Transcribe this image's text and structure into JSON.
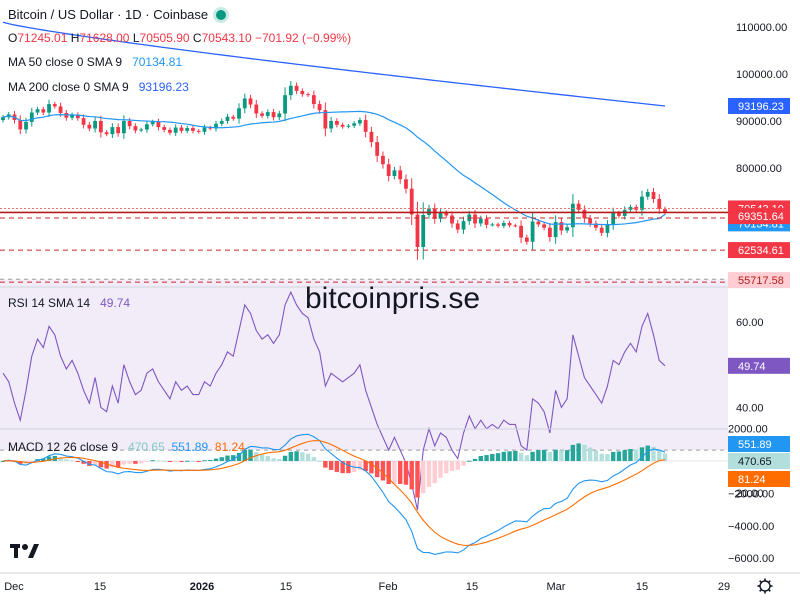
{
  "header": {
    "title": "Bitcoin / US Dollar · 1D · Coinbase",
    "ohlc": {
      "o_label": "O",
      "o": "71245.01",
      "h_label": "H",
      "h": "71628.00",
      "l_label": "L",
      "l": "70505.90",
      "c_label": "C",
      "c": "70543.10",
      "change": "−701.92 (−0.99%)"
    }
  },
  "legends": {
    "ma50_name": "MA 50 close 0 SMA 9",
    "ma50_value": "70134.81",
    "ma200_name": "MA 200 close 0 SMA 9",
    "ma200_value": "93196.23",
    "rsi_name": "RSI 14 SMA 14",
    "rsi_value": "49.74",
    "macd_name": "MACD 12 26 close 9",
    "macd_hist": "470.65",
    "macd_line": "551.89",
    "macd_signal": "81.24"
  },
  "watermark": "bitcoinpris.se",
  "price_labels": {
    "last": "70543.10",
    "ma50": "70134.81",
    "ma200": "93196.23",
    "level1": "69351.64",
    "level2": "62534.61",
    "level3": "55717.58"
  },
  "rsi_label": "49.74",
  "macd_labels": {
    "line": "551.89",
    "hist": "470.65",
    "signal": "81.24"
  },
  "colors": {
    "up": "#089981",
    "down": "#f23645",
    "ma50": "#2196f3",
    "ma200": "#2962ff",
    "rsi": "#7e57c2",
    "rsi_band": "#ede7f6",
    "macd": "#2196f3",
    "signal": "#ff6d00",
    "hist_up_strong": "#26a69a",
    "hist_up_weak": "#b2dfdb",
    "hist_down_strong": "#ff5252",
    "hist_down_weak": "#ffcdd2"
  },
  "icons": {
    "settings": "gear-icon",
    "logo": "tradingview-logo-icon"
  },
  "chart_data": [
    {
      "type": "candlestick",
      "title": "Bitcoin / US Dollar · 1D · Coinbase",
      "x_ticks": [
        "Dec",
        "15",
        "2026",
        "15",
        "Feb",
        "15",
        "Mar",
        "15",
        "29"
      ],
      "y_ticks": [
        "110000.00",
        "100000.00",
        "90000.00",
        "80000.00"
      ],
      "ylim": [
        55000,
        114000
      ],
      "grid": false,
      "closes": [
        90800,
        91400,
        90200,
        88200,
        89800,
        91800,
        92500,
        91800,
        93600,
        93100,
        91700,
        90700,
        91300,
        90600,
        89200,
        88400,
        90000,
        87600,
        87200,
        88700,
        87400,
        90000,
        88900,
        88000,
        88200,
        89300,
        89800,
        88700,
        88100,
        87500,
        88600,
        87900,
        88500,
        87900,
        87700,
        88600,
        88400,
        89400,
        90000,
        90900,
        90500,
        92700,
        94800,
        93500,
        91600,
        91100,
        91900,
        90800,
        91600,
        95500,
        97500,
        96400,
        95700,
        95500,
        93600,
        92300,
        88400,
        90000,
        89200,
        88800,
        89000,
        89500,
        90200,
        87700,
        85500,
        82600,
        80800,
        78300,
        79500,
        77600,
        75600,
        70100,
        63200,
        70000,
        71400,
        69200,
        70500,
        69900,
        68200,
        66900,
        68700,
        70100,
        68200,
        69200,
        67900,
        68000,
        67700,
        68300,
        67800,
        67700,
        65200,
        64300,
        68600,
        68000,
        67300,
        65300,
        68500,
        66700,
        67400,
        72400,
        71100,
        69300,
        68200,
        67300,
        66200,
        68000,
        70400,
        69800,
        71100,
        71700,
        71100,
        73900,
        74900,
        73400,
        71300,
        70543
      ],
      "series": [
        {
          "name": "MA 50 close 0 SMA 9",
          "last": 70134.81
        },
        {
          "name": "MA 200 close 0 SMA 9",
          "last": 93196.23
        }
      ],
      "levels": [
        70543.1,
        69351.64,
        62534.61,
        55717.58
      ]
    },
    {
      "type": "line",
      "title": "RSI 14 SMA 14",
      "y_ticks": [
        "60.00",
        "40.00",
        "20.00"
      ],
      "ylim": [
        11,
        86
      ],
      "bands": [
        30,
        70
      ],
      "values": [
        48,
        46,
        41,
        37,
        44,
        52,
        56,
        54,
        59,
        57,
        52,
        49,
        51,
        48,
        44,
        41,
        47,
        40,
        39,
        45,
        41,
        50,
        46,
        43,
        44,
        48,
        49,
        46,
        44,
        42,
        46,
        44,
        45,
        43,
        43,
        46,
        45,
        48,
        50,
        53,
        52,
        58,
        64,
        62,
        58,
        56,
        57,
        55,
        57,
        64,
        67,
        64,
        62,
        61,
        56,
        53,
        45,
        48,
        47,
        46,
        47,
        48,
        50,
        44,
        40,
        36,
        33,
        30,
        33,
        30,
        27,
        22,
        16,
        30,
        35,
        31,
        34,
        33,
        30,
        28,
        34,
        38,
        35,
        37,
        35,
        36,
        35,
        37,
        36,
        36,
        31,
        30,
        42,
        41,
        39,
        34,
        44,
        40,
        42,
        57,
        52,
        47,
        45,
        43,
        41,
        45,
        51,
        50,
        53,
        55,
        53,
        59,
        62,
        57,
        51,
        49.74
      ]
    },
    {
      "type": "bar+line",
      "title": "MACD 12 26 close 9",
      "y_ticks": [
        "2000.00",
        "0.00",
        "−2000.00",
        "−4000.00",
        "−6000.00"
      ],
      "ylim": [
        -6600,
        2600
      ],
      "series": [
        {
          "name": "MACD",
          "last": 551.89
        },
        {
          "name": "Signal",
          "last": 81.24
        },
        {
          "name": "Histogram",
          "last": 470.65
        }
      ]
    }
  ]
}
